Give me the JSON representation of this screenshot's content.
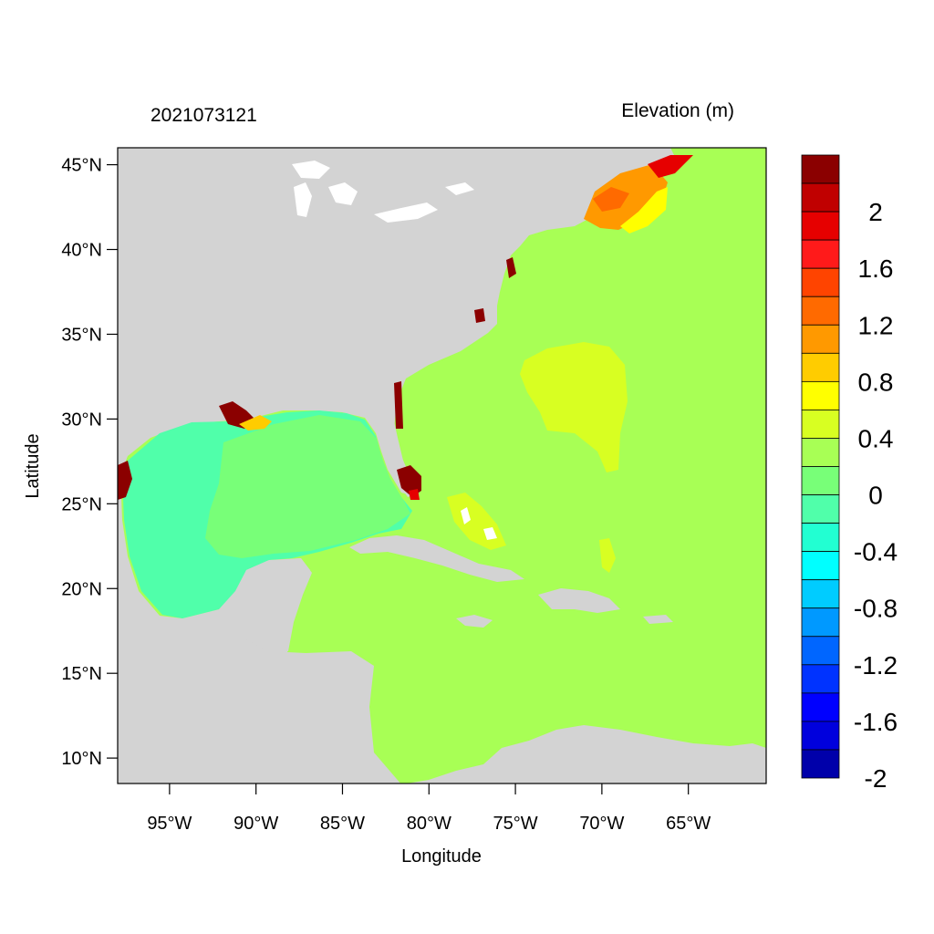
{
  "header": {
    "timestamp": "2021073121",
    "variable_title": "Elevation (m)"
  },
  "axes": {
    "xlabel": "Longitude",
    "ylabel": "Latitude",
    "lon_range": [
      -98,
      -60.5
    ],
    "lat_range": [
      8.5,
      46
    ],
    "lon_ticks": [
      {
        "value": -95,
        "label": "95°W"
      },
      {
        "value": -90,
        "label": "90°W"
      },
      {
        "value": -85,
        "label": "85°W"
      },
      {
        "value": -80,
        "label": "80°W"
      },
      {
        "value": -75,
        "label": "75°W"
      },
      {
        "value": -70,
        "label": "70°W"
      },
      {
        "value": -65,
        "label": "65°W"
      }
    ],
    "lat_ticks": [
      {
        "value": 45,
        "label": "45°N"
      },
      {
        "value": 40,
        "label": "40°N"
      },
      {
        "value": 35,
        "label": "35°N"
      },
      {
        "value": 30,
        "label": "30°N"
      },
      {
        "value": 25,
        "label": "25°N"
      },
      {
        "value": 20,
        "label": "20°N"
      },
      {
        "value": 15,
        "label": "15°N"
      },
      {
        "value": 10,
        "label": "10°N"
      }
    ]
  },
  "colorbar": {
    "colors_top_to_bottom": [
      "#8b0000",
      "#c00000",
      "#e60000",
      "#ff1a1a",
      "#ff4400",
      "#ff6a00",
      "#ff9900",
      "#ffcc00",
      "#ffff00",
      "#d8ff22",
      "#a8ff55",
      "#78ff78",
      "#50ffaa",
      "#22ffd2",
      "#00ffff",
      "#00ccff",
      "#0099ff",
      "#0066ff",
      "#0033ff",
      "#0000ff",
      "#0000dd",
      "#0000aa"
    ],
    "labels": [
      {
        "boundary": 2,
        "label": "2"
      },
      {
        "boundary": 4,
        "label": "1.6"
      },
      {
        "boundary": 6,
        "label": "1.2"
      },
      {
        "boundary": 8,
        "label": "0.8"
      },
      {
        "boundary": 10,
        "label": "0.4"
      },
      {
        "boundary": 12,
        "label": "0"
      },
      {
        "boundary": 14,
        "label": "-0.4"
      },
      {
        "boundary": 16,
        "label": "-0.8"
      },
      {
        "boundary": 18,
        "label": "-1.2"
      },
      {
        "boundary": 20,
        "label": "-1.6"
      },
      {
        "boundary": 22,
        "label": "-2"
      }
    ]
  },
  "map_colors": {
    "land": "#d3d3d3",
    "lakes": "#ffffff",
    "open_ocean": "#a8ff55",
    "gulf": "#50ffaa",
    "gulf_shelf": "#78ff78",
    "high_anomaly": "#d8ff22",
    "yellow": "#ffff00",
    "orange": "#ff9900",
    "dark_orange": "#ff6a00",
    "red": "#e60000",
    "dark_red": "#8b0000"
  }
}
